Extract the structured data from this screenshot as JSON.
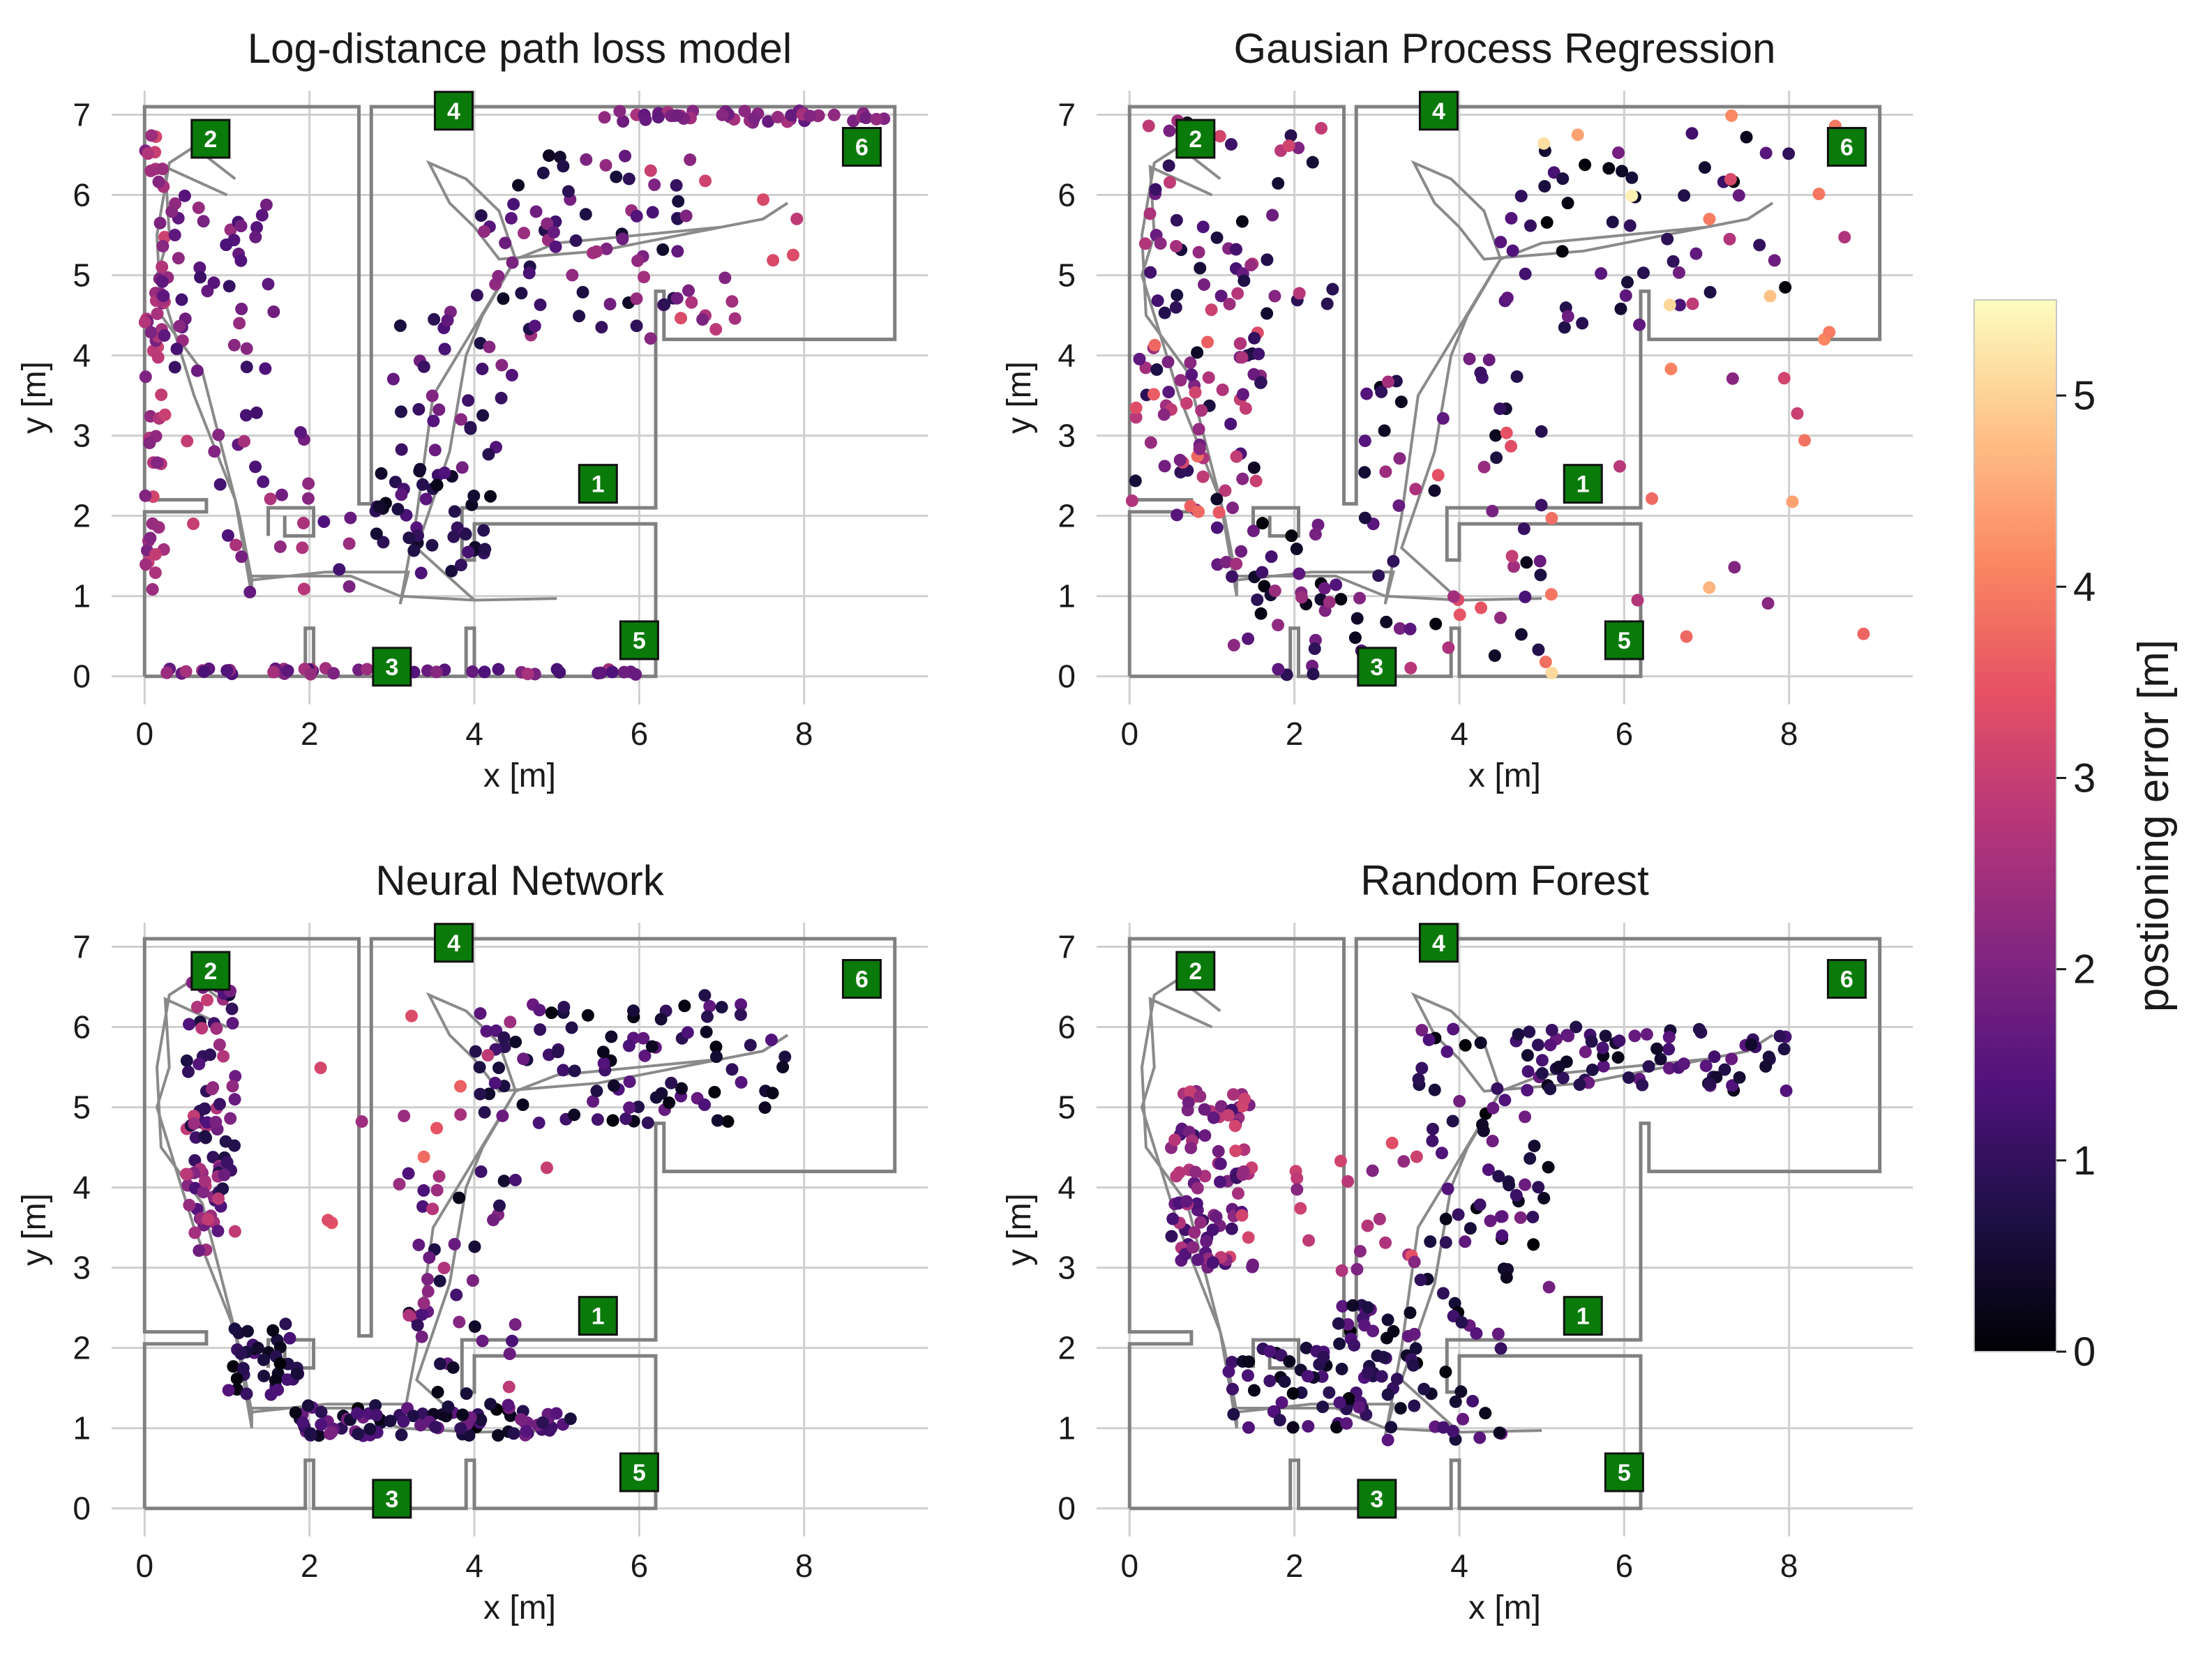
{
  "chart_data": [
    {
      "type": "scatter",
      "title": "Log-distance path loss model",
      "xlabel": "x [m]",
      "ylabel": "y [m]",
      "xlim": [
        -0.4,
        9.5
      ],
      "ylim": [
        -0.35,
        7.3
      ],
      "xticks": [
        0,
        2,
        4,
        6,
        8
      ],
      "yticks": [
        0,
        1,
        2,
        3,
        4,
        5,
        6,
        7
      ],
      "clusters": [
        {
          "x": [
            0.0,
            0.25
          ],
          "y": [
            0.8,
            6.9
          ],
          "n": 55,
          "err": [
            1.8,
            3.2
          ]
        },
        {
          "x": [
            0.2,
            1.6
          ],
          "y": [
            3.8,
            6.0
          ],
          "n": 45,
          "err": [
            1.0,
            2.4
          ]
        },
        {
          "x": [
            0.4,
            2.5
          ],
          "y": [
            1.0,
            3.5
          ],
          "n": 30,
          "err": [
            1.2,
            3.0
          ]
        },
        {
          "x": [
            0.2,
            6.0
          ],
          "y": [
            0.02,
            0.1
          ],
          "n": 45,
          "err": [
            1.2,
            2.6
          ]
        },
        {
          "x": [
            2.8,
            4.2
          ],
          "y": [
            1.2,
            2.6
          ],
          "n": 45,
          "err": [
            0.2,
            1.6
          ]
        },
        {
          "x": [
            3.0,
            4.5
          ],
          "y": [
            2.6,
            4.6
          ],
          "n": 30,
          "err": [
            0.6,
            2.2
          ]
        },
        {
          "x": [
            4.0,
            6.5
          ],
          "y": [
            4.2,
            6.5
          ],
          "n": 70,
          "err": [
            0.3,
            2.5
          ]
        },
        {
          "x": [
            5.5,
            9.0
          ],
          "y": [
            6.9,
            7.05
          ],
          "n": 45,
          "err": [
            1.6,
            2.6
          ]
        },
        {
          "x": [
            6.0,
            8.0
          ],
          "y": [
            4.2,
            6.5
          ],
          "n": 18,
          "err": [
            1.8,
            3.6
          ]
        }
      ]
    },
    {
      "type": "scatter",
      "title": "Gausian Process Regression",
      "xlabel": "x [m]",
      "ylabel": "y [m]",
      "xlim": [
        -0.4,
        9.5
      ],
      "ylim": [
        -0.35,
        7.3
      ],
      "xticks": [
        0,
        2,
        4,
        6,
        8
      ],
      "yticks": [
        0,
        1,
        2,
        3,
        4,
        5,
        6,
        7
      ],
      "clusters": [
        {
          "x": [
            0.0,
            1.6
          ],
          "y": [
            2.0,
            4.3
          ],
          "n": 70,
          "err": [
            0.0,
            3.8
          ]
        },
        {
          "x": [
            0.0,
            2.5
          ],
          "y": [
            4.5,
            7.0
          ],
          "n": 55,
          "err": [
            0.2,
            3.2
          ]
        },
        {
          "x": [
            1.0,
            3.0
          ],
          "y": [
            0.0,
            2.0
          ],
          "n": 45,
          "err": [
            0.0,
            2.5
          ]
        },
        {
          "x": [
            2.8,
            5.0
          ],
          "y": [
            0.0,
            4.0
          ],
          "n": 55,
          "err": [
            0.0,
            3.5
          ]
        },
        {
          "x": [
            4.5,
            8.0
          ],
          "y": [
            4.3,
            6.8
          ],
          "n": 50,
          "err": [
            0.0,
            2.0
          ]
        },
        {
          "x": [
            5.0,
            9.0
          ],
          "y": [
            0.0,
            7.0
          ],
          "n": 35,
          "err": [
            1.5,
            5.5
          ]
        }
      ]
    },
    {
      "type": "scatter",
      "title": "Neural Network",
      "xlabel": "x [m]",
      "ylabel": "y [m]",
      "xlim": [
        -0.4,
        9.5
      ],
      "ylim": [
        -0.35,
        7.3
      ],
      "xticks": [
        0,
        2,
        4,
        6,
        8
      ],
      "yticks": [
        0,
        1,
        2,
        3,
        4,
        5,
        6,
        7
      ],
      "clusters": [
        {
          "x": [
            0.5,
            1.1
          ],
          "y": [
            3.2,
            6.6
          ],
          "n": 90,
          "err": [
            0.5,
            3.0
          ]
        },
        {
          "x": [
            1.0,
            1.9
          ],
          "y": [
            1.4,
            2.3
          ],
          "n": 40,
          "err": [
            0.0,
            1.5
          ]
        },
        {
          "x": [
            1.8,
            5.2
          ],
          "y": [
            0.9,
            1.3
          ],
          "n": 90,
          "err": [
            0.0,
            2.0
          ]
        },
        {
          "x": [
            3.2,
            4.5
          ],
          "y": [
            1.3,
            4.2
          ],
          "n": 45,
          "err": [
            0.0,
            3.0
          ]
        },
        {
          "x": [
            4.0,
            7.8
          ],
          "y": [
            4.8,
            6.4
          ],
          "n": 95,
          "err": [
            0.0,
            1.8
          ]
        },
        {
          "x": [
            2.0,
            5.0
          ],
          "y": [
            3.5,
            6.5
          ],
          "n": 14,
          "err": [
            2.0,
            4.0
          ]
        }
      ]
    },
    {
      "type": "scatter",
      "title": "Random Forest",
      "xlabel": "x [m]",
      "ylabel": "y [m]",
      "xlim": [
        -0.4,
        9.5
      ],
      "ylim": [
        -0.35,
        7.3
      ],
      "xticks": [
        0,
        2,
        4,
        6,
        8
      ],
      "yticks": [
        0,
        1,
        2,
        3,
        4,
        5,
        6,
        7
      ],
      "clusters": [
        {
          "x": [
            0.5,
            1.5
          ],
          "y": [
            3.0,
            5.2
          ],
          "n": 100,
          "err": [
            1.0,
            3.2
          ]
        },
        {
          "x": [
            1.2,
            3.5
          ],
          "y": [
            1.0,
            2.0
          ],
          "n": 60,
          "err": [
            0.0,
            1.5
          ]
        },
        {
          "x": [
            2.5,
            4.6
          ],
          "y": [
            0.8,
            2.6
          ],
          "n": 55,
          "err": [
            0.0,
            1.8
          ]
        },
        {
          "x": [
            3.5,
            5.2
          ],
          "y": [
            2.6,
            6.0
          ],
          "n": 65,
          "err": [
            0.0,
            2.0
          ]
        },
        {
          "x": [
            4.8,
            8.0
          ],
          "y": [
            5.2,
            6.0
          ],
          "n": 70,
          "err": [
            0.2,
            1.8
          ]
        },
        {
          "x": [
            2.0,
            3.5
          ],
          "y": [
            2.8,
            5.0
          ],
          "n": 20,
          "err": [
            2.0,
            3.5
          ]
        }
      ]
    }
  ],
  "floorplan": {
    "walls": [
      [
        [
          0.0,
          0.0
        ],
        [
          1.95,
          0.0
        ],
        [
          1.95,
          0.6
        ],
        [
          2.05,
          0.6
        ],
        [
          2.05,
          0.0
        ],
        [
          3.9,
          0.0
        ],
        [
          3.9,
          0.6
        ],
        [
          4.0,
          0.6
        ],
        [
          4.0,
          0.0
        ],
        [
          6.2,
          0.0
        ],
        [
          6.2,
          1.9
        ],
        [
          4.0,
          1.9
        ],
        [
          4.0,
          1.45
        ],
        [
          3.85,
          1.45
        ],
        [
          3.85,
          2.1
        ],
        [
          6.2,
          2.1
        ],
        [
          6.2,
          4.8
        ],
        [
          6.3,
          4.8
        ],
        [
          6.3,
          4.2
        ],
        [
          9.1,
          4.2
        ],
        [
          9.1,
          7.1
        ],
        [
          2.75,
          7.1
        ],
        [
          2.75,
          2.15
        ],
        [
          2.6,
          2.15
        ],
        [
          2.6,
          7.1
        ],
        [
          0.0,
          7.1
        ],
        [
          0.0,
          2.2
        ],
        [
          0.75,
          2.2
        ],
        [
          0.75,
          2.05
        ],
        [
          0.0,
          2.05
        ],
        [
          0.0,
          0.0
        ]
      ],
      [
        [
          1.5,
          1.75
        ],
        [
          1.5,
          2.1
        ],
        [
          2.05,
          2.1
        ],
        [
          2.05,
          1.75
        ],
        [
          1.7,
          1.75
        ],
        [
          1.7,
          2.0
        ]
      ]
    ],
    "path": [
      [
        1.0,
        6.0
      ],
      [
        0.25,
        6.35
      ],
      [
        0.3,
        5.5
      ],
      [
        0.15,
        5.0
      ],
      [
        0.6,
        3.5
      ],
      [
        1.1,
        2.2
      ],
      [
        1.3,
        1.0
      ],
      [
        1.3,
        1.25
      ],
      [
        2.5,
        1.25
      ],
      [
        3.1,
        1.0
      ],
      [
        4.0,
        0.95
      ],
      [
        5.0,
        0.97
      ],
      [
        4.0,
        0.95
      ],
      [
        3.3,
        1.6
      ],
      [
        3.7,
        2.8
      ],
      [
        3.9,
        4.0
      ],
      [
        4.1,
        4.5
      ],
      [
        4.5,
        5.2
      ],
      [
        5.0,
        5.4
      ],
      [
        6.0,
        5.5
      ],
      [
        7.0,
        5.6
      ],
      [
        7.5,
        5.7
      ],
      [
        7.8,
        5.9
      ],
      [
        7.5,
        5.7
      ],
      [
        7.0,
        5.6
      ],
      [
        5.5,
        5.3
      ],
      [
        4.3,
        5.2
      ],
      [
        4.0,
        5.6
      ],
      [
        3.7,
        5.9
      ],
      [
        3.45,
        6.4
      ],
      [
        3.9,
        6.2
      ],
      [
        4.3,
        5.8
      ],
      [
        4.5,
        5.2
      ],
      [
        3.5,
        3.5
      ],
      [
        3.3,
        2.0
      ],
      [
        3.1,
        0.9
      ],
      [
        3.2,
        1.3
      ],
      [
        2.2,
        1.3
      ],
      [
        1.3,
        1.2
      ],
      [
        1.15,
        2.0
      ],
      [
        0.7,
        3.8
      ],
      [
        0.2,
        4.5
      ],
      [
        0.15,
        5.5
      ],
      [
        0.3,
        6.4
      ],
      [
        0.6,
        6.6
      ],
      [
        1.1,
        6.2
      ]
    ],
    "rooms": [
      {
        "label": "1",
        "x": 5.5,
        "y": 2.4
      },
      {
        "label": "2",
        "x": 0.8,
        "y": 6.7
      },
      {
        "label": "3",
        "x": 3.0,
        "y": 0.12
      },
      {
        "label": "4",
        "x": 3.75,
        "y": 7.05
      },
      {
        "label": "5",
        "x": 6.0,
        "y": 0.45
      },
      {
        "label": "6",
        "x": 8.7,
        "y": 6.6
      }
    ]
  },
  "colorbar": {
    "label": "postioning error [m]",
    "min": 0,
    "max": 5.5,
    "ticks": [
      0,
      1,
      2,
      3,
      4,
      5
    ]
  }
}
